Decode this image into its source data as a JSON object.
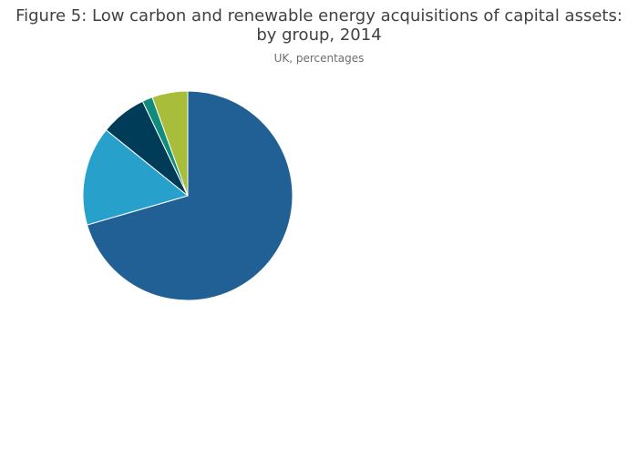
{
  "chart_data": {
    "type": "pie",
    "title_lines": [
      "Figure 5: Low carbon and renewable energy acquisitions of capital assets:",
      "by group, 2014"
    ],
    "subtitle": "UK, percentages",
    "start_angle_deg": 0,
    "direction": "clockwise",
    "slices": [
      {
        "value": 70.5,
        "color": "#206095"
      },
      {
        "value": 15.3,
        "color": "#27a0cc"
      },
      {
        "value": 7.1,
        "color": "#003c57"
      },
      {
        "value": 1.6,
        "color": "#118c7b"
      },
      {
        "value": 5.5,
        "color": "#a8bd3a"
      }
    ],
    "legend": "none"
  }
}
